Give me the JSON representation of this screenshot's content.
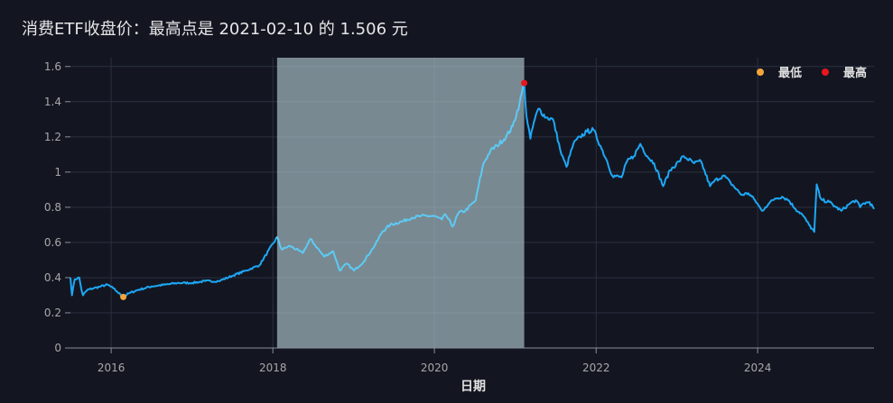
{
  "chart_data": {
    "type": "line",
    "title": "消费ETF收盘价：最高点是 2021-02-10 的 1.506 元",
    "xlabel": "日期",
    "ylabel": "",
    "x_range": [
      "2015-07-01",
      "2025-06-10"
    ],
    "ylim": [
      0,
      1.65
    ],
    "x_ticks": [
      "2016",
      "2018",
      "2020",
      "2022",
      "2024"
    ],
    "y_ticks": [
      0,
      0.2,
      0.4,
      0.6,
      0.8,
      1,
      1.2,
      1.4,
      1.6
    ],
    "y_tick_labels": [
      "0",
      "0.2",
      "0.4",
      "0.6",
      "0.8",
      "1",
      "1.2",
      "1.4",
      "1.6"
    ],
    "grid": true,
    "legend_position": "top-right",
    "line_color": "#1ea7f5",
    "highlight_color": "#5ccbf5",
    "shaded_region": {
      "start": "2018-01-20",
      "end": "2021-02-10",
      "color": "#b8d0d6"
    },
    "series": [
      {
        "x": [
          "2015-07-01",
          "2015-07-08",
          "2015-07-20",
          "2015-08-10",
          "2015-08-20",
          "2015-08-27",
          "2015-09-15",
          "2015-10-15",
          "2015-11-15",
          "2015-12-15",
          "2016-01-10",
          "2016-01-28",
          "2016-02-25",
          "2016-03-20",
          "2016-05-01",
          "2016-07-01",
          "2016-09-01",
          "2016-11-01",
          "2017-01-01",
          "2017-03-01",
          "2017-05-01",
          "2017-07-01",
          "2017-09-01",
          "2017-11-01",
          "2018-01-20",
          "2018-02-10",
          "2018-03-20",
          "2018-05-15",
          "2018-06-20",
          "2018-07-20",
          "2018-08-20",
          "2018-10-01",
          "2018-10-30",
          "2018-12-01",
          "2019-01-03",
          "2019-02-15",
          "2019-04-10",
          "2019-05-10",
          "2019-06-15",
          "2019-08-10",
          "2019-09-20",
          "2019-11-01",
          "2019-12-31",
          "2020-02-03",
          "2020-02-20",
          "2020-03-23",
          "2020-04-20",
          "2020-05-20",
          "2020-07-06",
          "2020-07-20",
          "2020-08-10",
          "2020-09-10",
          "2020-10-10",
          "2020-11-20",
          "2020-12-20",
          "2021-01-20",
          "2021-02-10",
          "2021-02-20",
          "2021-03-10",
          "2021-03-25",
          "2021-04-15",
          "2021-05-20",
          "2021-06-20",
          "2021-07-28",
          "2021-08-20",
          "2021-09-20",
          "2021-10-20",
          "2021-11-20",
          "2021-12-20",
          "2022-01-20",
          "2022-02-20",
          "2022-03-15",
          "2022-04-26",
          "2022-05-20",
          "2022-06-20",
          "2022-07-20",
          "2022-08-20",
          "2022-09-20",
          "2022-10-31",
          "2022-12-01",
          "2023-01-10",
          "2023-02-01",
          "2023-03-20",
          "2023-04-20",
          "2023-05-31",
          "2023-06-20",
          "2023-07-31",
          "2023-08-31",
          "2023-10-20",
          "2023-11-20",
          "2023-12-20",
          "2024-01-20",
          "2024-02-05",
          "2024-02-20",
          "2024-03-20",
          "2024-04-20",
          "2024-05-20",
          "2024-06-20",
          "2024-07-20",
          "2024-08-20",
          "2024-09-13",
          "2024-09-24",
          "2024-10-08",
          "2024-10-20",
          "2024-11-20",
          "2024-12-20",
          "2025-01-13",
          "2025-02-20",
          "2025-03-20",
          "2025-04-08",
          "2025-04-20",
          "2025-05-20",
          "2025-06-10"
        ],
        "y": [
          0.4,
          0.3,
          0.39,
          0.4,
          0.33,
          0.3,
          0.33,
          0.34,
          0.35,
          0.36,
          0.34,
          0.32,
          0.29,
          0.31,
          0.33,
          0.35,
          0.36,
          0.37,
          0.37,
          0.38,
          0.38,
          0.41,
          0.44,
          0.47,
          0.63,
          0.56,
          0.58,
          0.54,
          0.62,
          0.57,
          0.52,
          0.55,
          0.44,
          0.48,
          0.44,
          0.49,
          0.59,
          0.66,
          0.7,
          0.72,
          0.74,
          0.75,
          0.75,
          0.73,
          0.76,
          0.69,
          0.77,
          0.78,
          0.84,
          0.93,
          1.05,
          1.12,
          1.15,
          1.2,
          1.26,
          1.39,
          1.506,
          1.32,
          1.19,
          1.28,
          1.36,
          1.31,
          1.3,
          1.1,
          1.03,
          1.16,
          1.2,
          1.23,
          1.24,
          1.15,
          1.06,
          0.98,
          0.97,
          1.06,
          1.09,
          1.16,
          1.09,
          1.05,
          0.92,
          1.01,
          1.06,
          1.09,
          1.05,
          1.06,
          0.92,
          0.95,
          0.98,
          0.94,
          0.87,
          0.88,
          0.84,
          0.78,
          0.8,
          0.82,
          0.85,
          0.86,
          0.84,
          0.79,
          0.76,
          0.7,
          0.66,
          0.93,
          0.86,
          0.84,
          0.83,
          0.8,
          0.78,
          0.82,
          0.84,
          0.8,
          0.82,
          0.83,
          0.79
        ]
      }
    ],
    "markers": [
      {
        "name": "最低",
        "x": "2016-02-25",
        "y": 0.29,
        "color": "#f5a63a"
      },
      {
        "name": "最高",
        "x": "2021-02-10",
        "y": 1.506,
        "color": "#e8161d"
      }
    ]
  }
}
